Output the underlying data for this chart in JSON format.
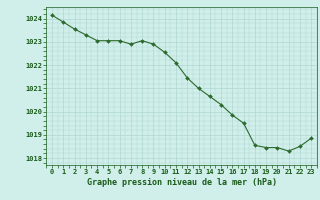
{
  "x": [
    0,
    1,
    2,
    3,
    4,
    5,
    6,
    7,
    8,
    9,
    10,
    11,
    12,
    13,
    14,
    15,
    16,
    17,
    18,
    19,
    20,
    21,
    22,
    23
  ],
  "y": [
    1024.15,
    1023.85,
    1023.55,
    1023.3,
    1023.05,
    1023.05,
    1023.05,
    1022.9,
    1023.05,
    1022.9,
    1022.55,
    1022.1,
    1021.45,
    1021.0,
    1020.65,
    1020.3,
    1019.85,
    1019.5,
    1018.55,
    1018.45,
    1018.45,
    1018.3,
    1018.5,
    1018.85
  ],
  "line_color": "#2d6a2d",
  "marker_color": "#2d6a2d",
  "bg_color": "#d0eeea",
  "grid_color": "#b0d8d4",
  "xlabel": "Graphe pression niveau de la mer (hPa)",
  "xlabel_color": "#1a5c1a",
  "tick_color": "#1a5c1a",
  "ylim": [
    1017.7,
    1024.5
  ],
  "xlim": [
    -0.5,
    23.5
  ],
  "yticks": [
    1018,
    1019,
    1020,
    1021,
    1022,
    1023,
    1024
  ],
  "xticks": [
    0,
    1,
    2,
    3,
    4,
    5,
    6,
    7,
    8,
    9,
    10,
    11,
    12,
    13,
    14,
    15,
    16,
    17,
    18,
    19,
    20,
    21,
    22,
    23
  ],
  "xtick_labels": [
    "0",
    "1",
    "2",
    "3",
    "4",
    "5",
    "6",
    "7",
    "8",
    "9",
    "10",
    "11",
    "12",
    "13",
    "14",
    "15",
    "16",
    "17",
    "18",
    "19",
    "20",
    "21",
    "22",
    "23"
  ]
}
